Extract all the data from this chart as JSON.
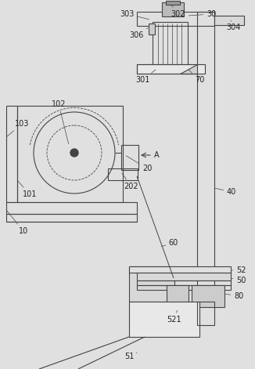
{
  "bg_color": "#e0e0e0",
  "line_color": "#444444",
  "lw": 0.8,
  "fig_w": 3.26,
  "fig_h": 4.71
}
